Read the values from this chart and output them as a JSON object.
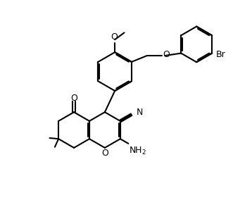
{
  "bg_color": "#ffffff",
  "lw": 1.5,
  "lc": "#000000",
  "figsize": [
    3.58,
    2.84
  ],
  "dpi": 100,
  "xlim": [
    0,
    10
  ],
  "ylim": [
    0,
    8
  ]
}
